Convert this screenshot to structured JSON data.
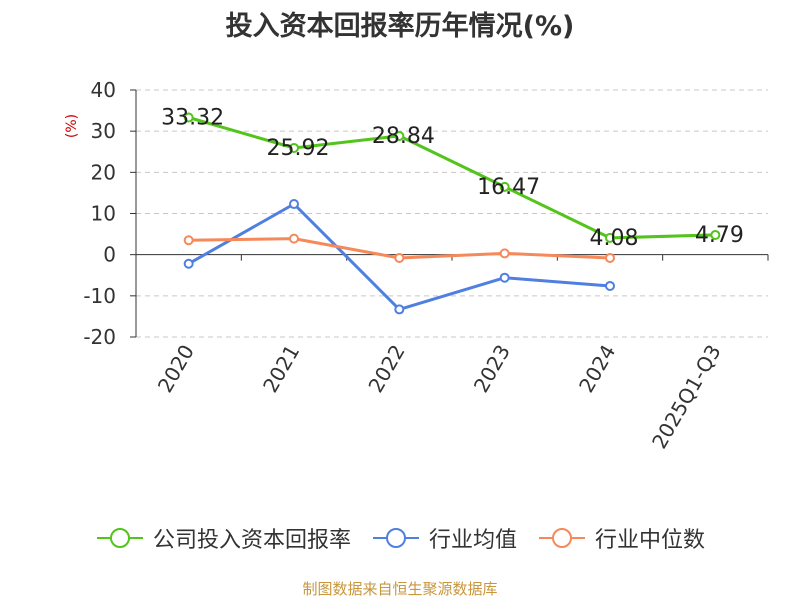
{
  "title": "投入资本回报率历年情况(%)",
  "source": "制图数据来自恒生聚源数据库",
  "chart_data": {
    "type": "line",
    "title": "投入资本回报率历年情况(%)",
    "ylabel": "(%)",
    "xlabel": "",
    "ylim": [
      -20,
      40
    ],
    "yticks": [
      40,
      30,
      20,
      10,
      0,
      -10,
      -20
    ],
    "categories": [
      "2020",
      "2021",
      "2022",
      "2023",
      "2024",
      "2025Q1-Q3"
    ],
    "grid": true,
    "legend_position": "bottom",
    "series": [
      {
        "name": "公司投入资本回报率",
        "color": "#52c41a",
        "values": [
          33.32,
          25.92,
          28.84,
          16.47,
          4.08,
          4.79
        ],
        "labels": [
          "33.32",
          "25.92",
          "28.84",
          "16.47",
          "4.08",
          "4.79"
        ]
      },
      {
        "name": "行业均值",
        "color": "#4f7fe0",
        "values": [
          -2.2,
          12.3,
          -13.3,
          -5.6,
          -7.6,
          null
        ]
      },
      {
        "name": "行业中位数",
        "color": "#f5895a",
        "values": [
          3.5,
          3.9,
          -0.8,
          0.3,
          -0.8,
          null
        ]
      }
    ]
  }
}
